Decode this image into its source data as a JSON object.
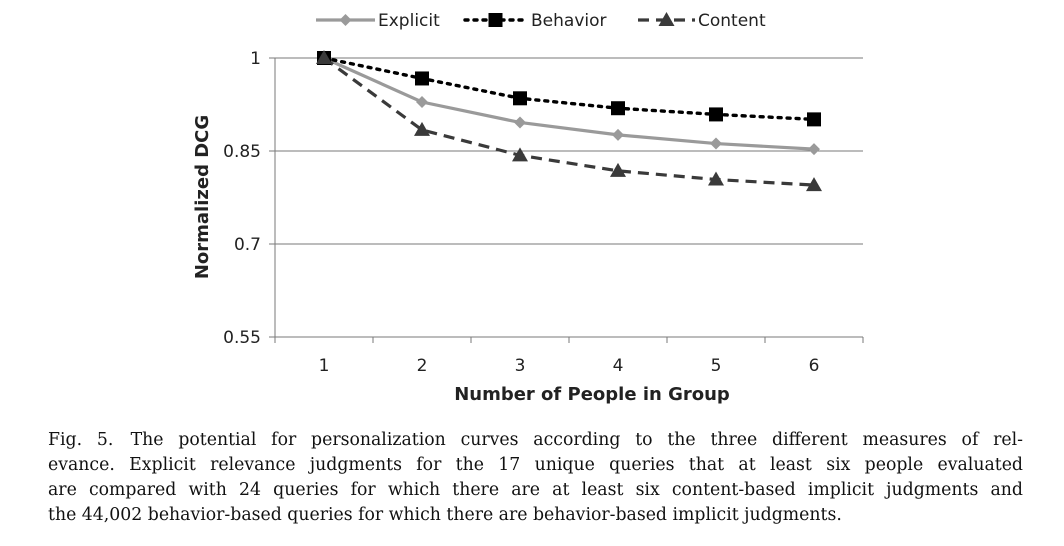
{
  "chart_data": {
    "type": "line",
    "title": "",
    "xlabel": "Number of People in Group",
    "ylabel": "Normalized DCG",
    "categories": [
      "1",
      "2",
      "3",
      "4",
      "5",
      "6"
    ],
    "x": [
      1,
      2,
      3,
      4,
      5,
      6
    ],
    "ylim": [
      0.55,
      1
    ],
    "yticks": [
      0.55,
      0.7,
      0.85,
      1
    ],
    "ytick_labels": [
      "0.55",
      "0.7",
      "0.85",
      "1"
    ],
    "grid": "horizontal",
    "legend_position": "top",
    "series": [
      {
        "name": "Explicit",
        "values": [
          1.0,
          0.929,
          0.896,
          0.876,
          0.862,
          0.853
        ],
        "color": "#9a9a9a",
        "line_style": "solid",
        "marker": "diamond"
      },
      {
        "name": "Behavior",
        "values": [
          1.0,
          0.967,
          0.935,
          0.919,
          0.909,
          0.901
        ],
        "color": "#000000",
        "line_style": "dotted",
        "marker": "square"
      },
      {
        "name": "Content",
        "values": [
          1.0,
          0.884,
          0.843,
          0.818,
          0.804,
          0.795
        ],
        "color": "#3a3a3a",
        "line_style": "dashed",
        "marker": "triangle"
      }
    ]
  },
  "caption": {
    "lines": [
      "Fig. 5. The potential for personalization curves according to the three different measures of rel-",
      "evance. Explicit relevance judgments for the 17 unique queries that at least six people evaluated",
      "are compared with 24 queries for which there are at least six content-based implicit judgments and",
      "the 44,002 behavior-based queries for which there are behavior-based implicit judgments."
    ]
  }
}
